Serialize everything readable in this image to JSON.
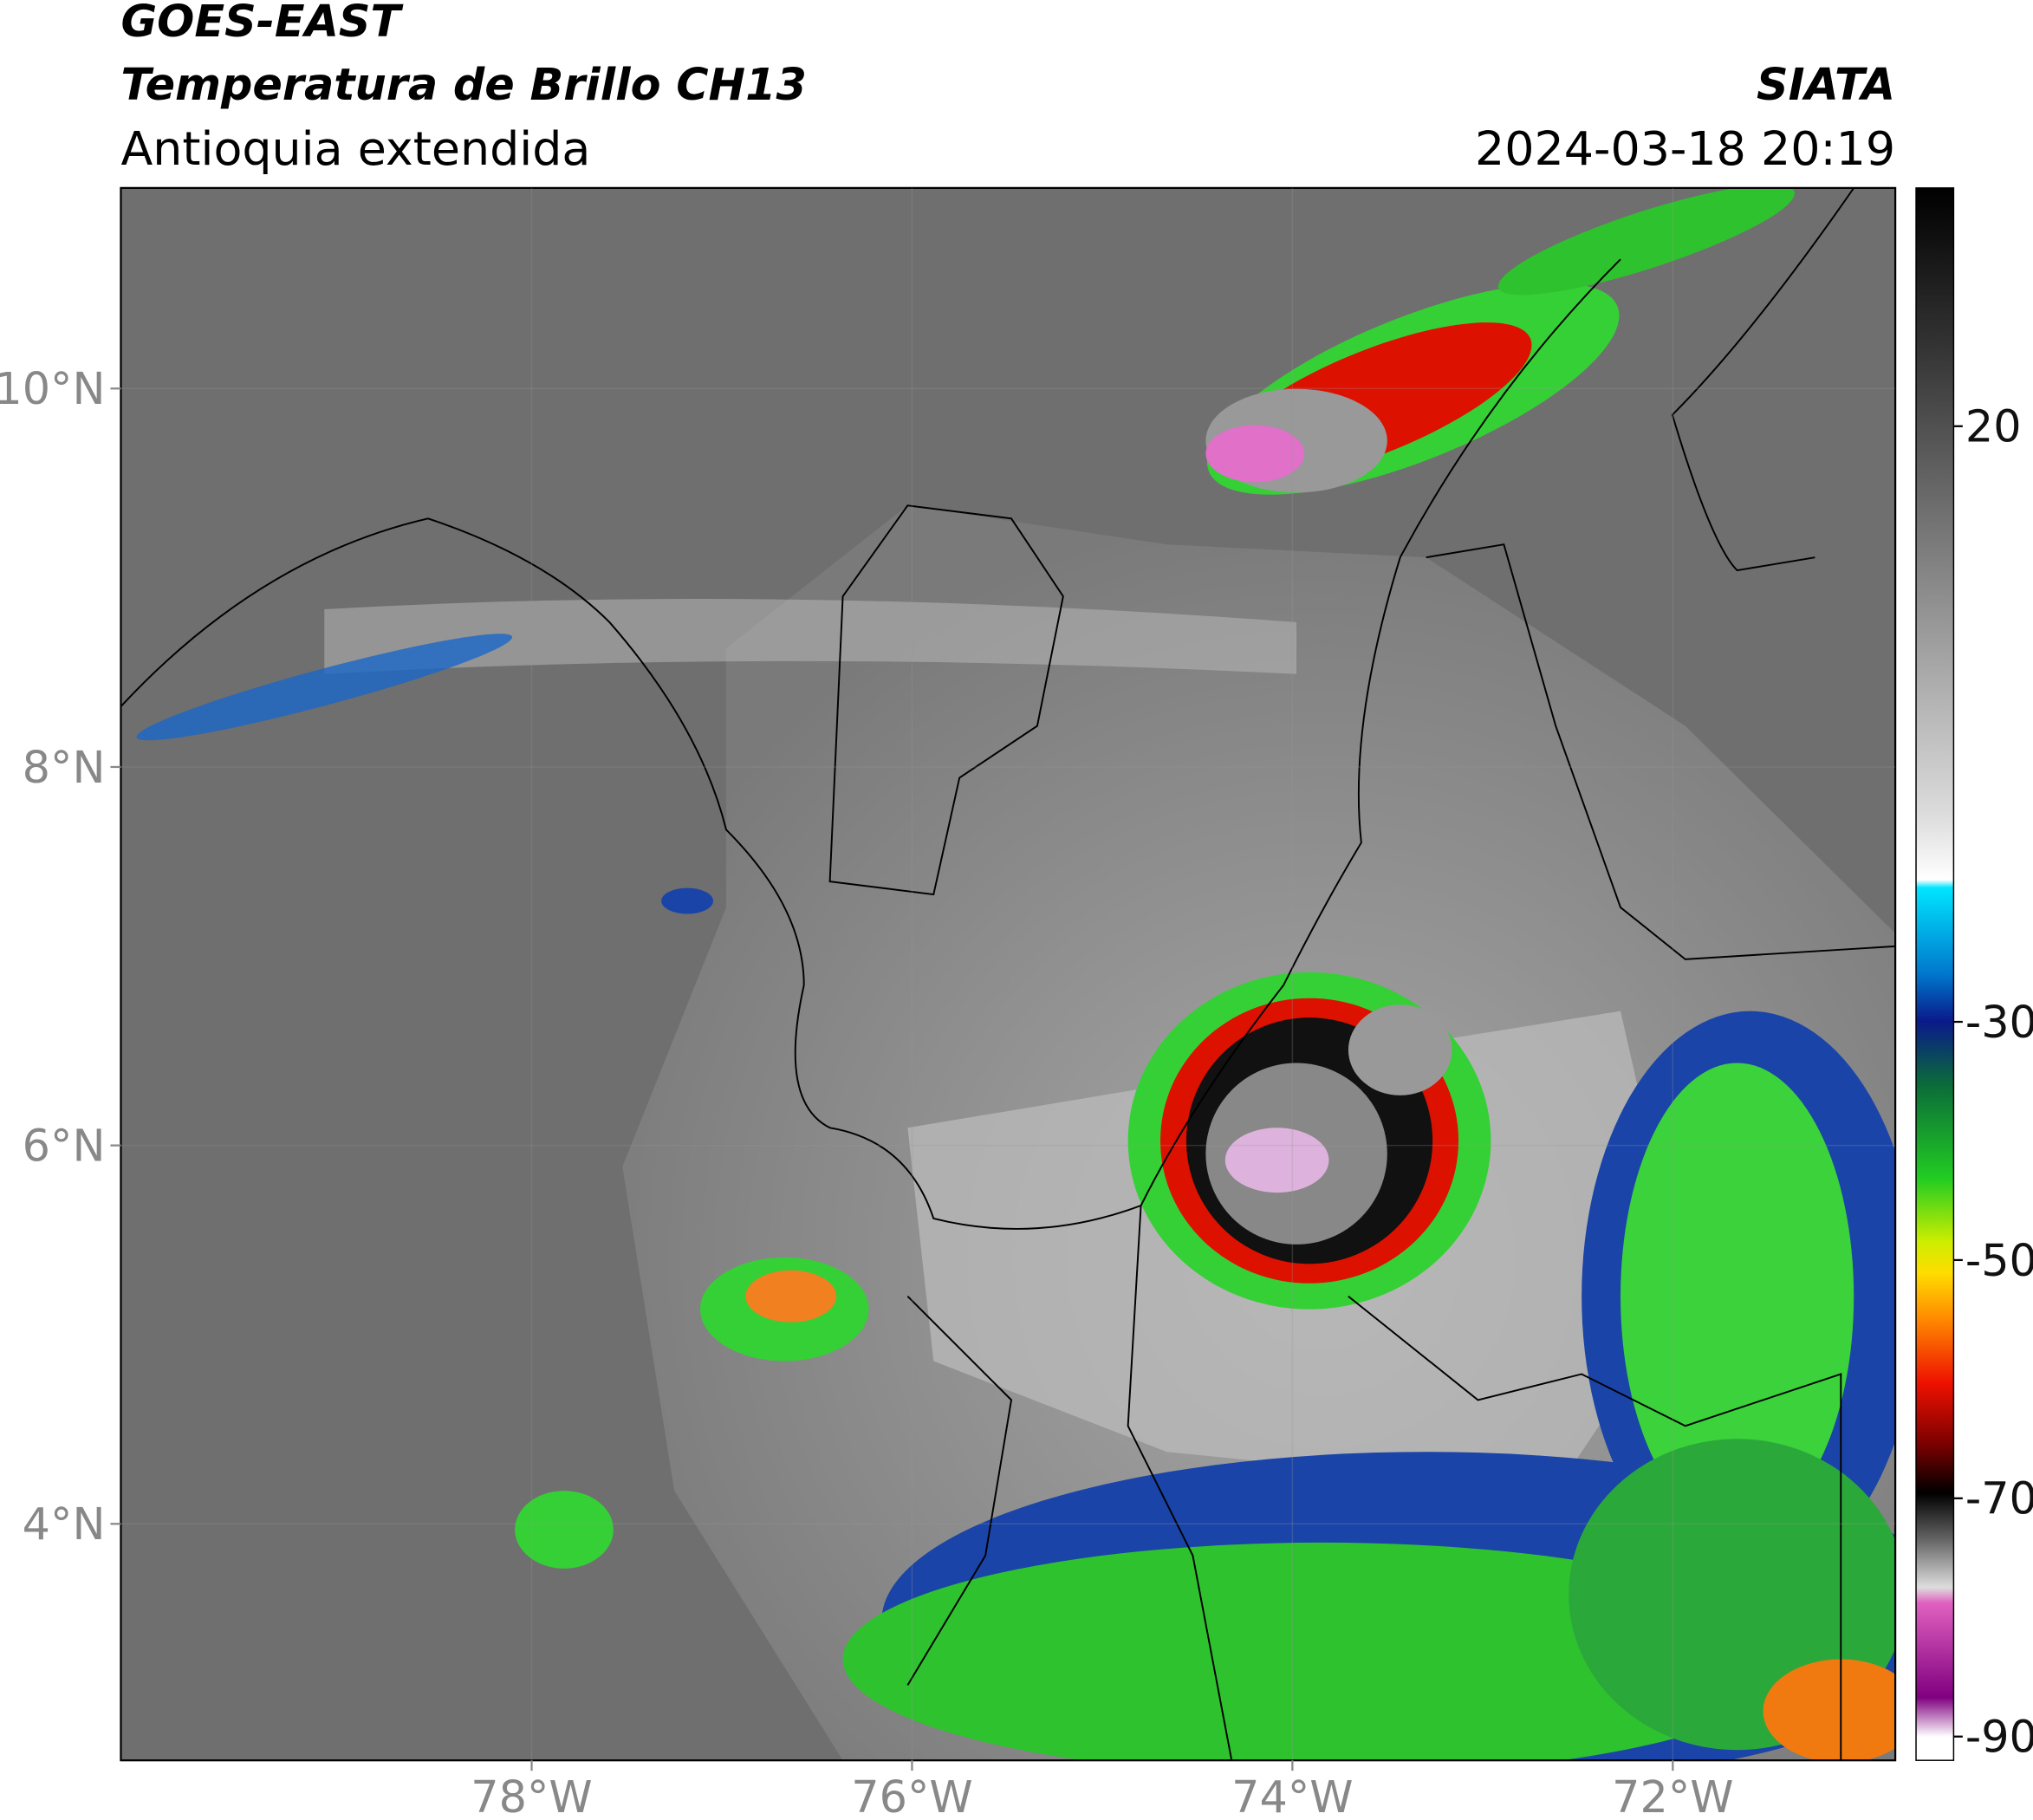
{
  "header": {
    "title": "GOES-EAST",
    "subtitle": "Temperatura de Brillo CH13",
    "region": "Antioquia extendida",
    "source": "SIATA",
    "datetime": "2024-03-18 20:19"
  },
  "map": {
    "xlim": [
      -80.16,
      -70.83
    ],
    "ylim": [
      2.75,
      11.06
    ],
    "xticks": [
      {
        "value": -78,
        "label": "78°W"
      },
      {
        "value": -76,
        "label": "76°W"
      },
      {
        "value": -74,
        "label": "74°W"
      },
      {
        "value": -72,
        "label": "72°W"
      }
    ],
    "yticks": [
      {
        "value": 10,
        "label": "10°N"
      },
      {
        "value": 8,
        "label": "8°N"
      },
      {
        "value": 6,
        "label": "6°N"
      },
      {
        "value": 4,
        "label": "4°N"
      }
    ]
  },
  "colorbar": {
    "clim": [
      -92,
      40
    ],
    "ticks": [
      20,
      -30,
      -50,
      -70,
      -90
    ]
  }
}
